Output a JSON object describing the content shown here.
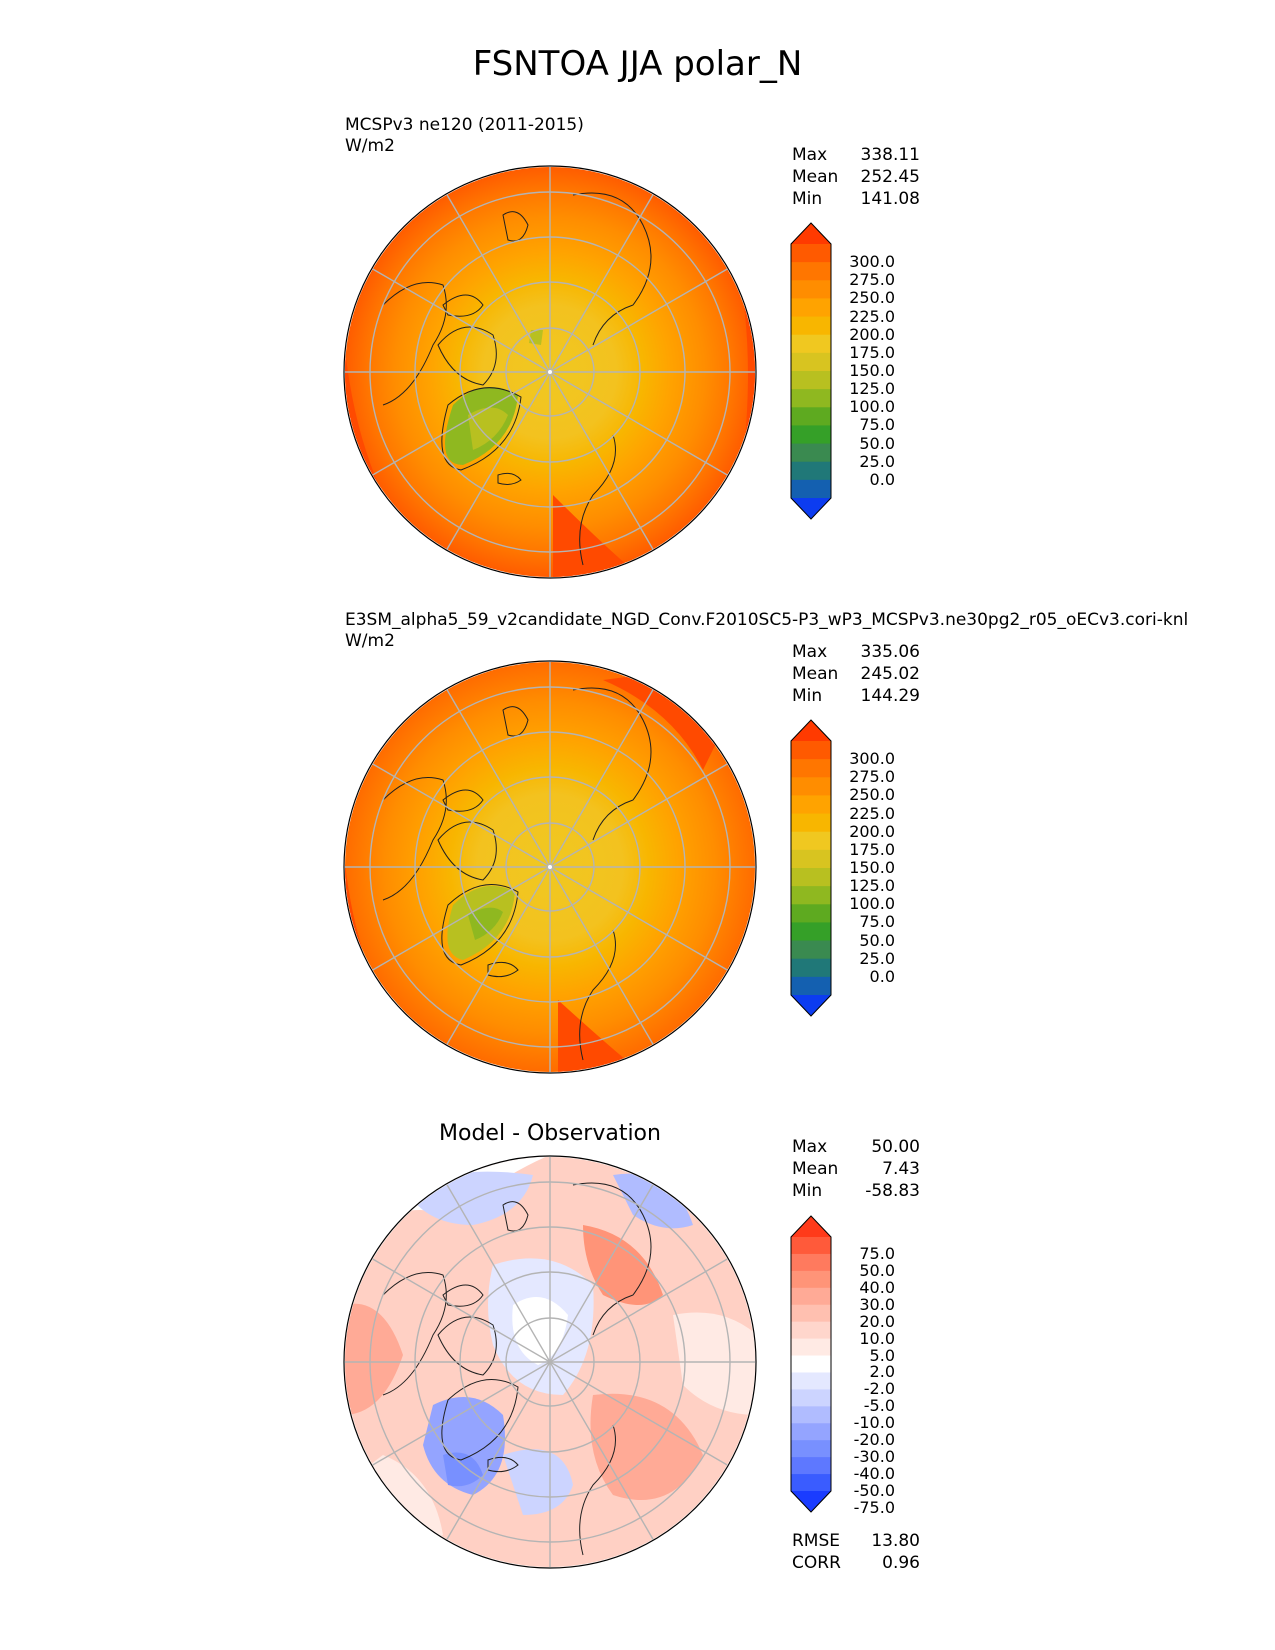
{
  "figure": {
    "title": "FSNTOA JJA polar_N"
  },
  "panels": [
    {
      "id": "test",
      "name": "MCSPv3 ne120 (2011-2015)",
      "units": "W/m2",
      "stats": {
        "max_label": "Max",
        "max": "338.11",
        "mean_label": "Mean",
        "mean": "252.45",
        "min_label": "Min",
        "min": "141.08"
      },
      "colorbar_levels": [
        "300.0",
        "275.0",
        "250.0",
        "225.0",
        "200.0",
        "175.0",
        "150.0",
        "125.0",
        "100.0",
        "75.0",
        "50.0",
        "25.0",
        "0.0"
      ],
      "colorbar_colors": [
        "#ff3a00",
        "#ff5a00",
        "#ff7600",
        "#ff8d00",
        "#ffa300",
        "#f8b600",
        "#f0c820",
        "#d8c420",
        "#b8c020",
        "#8fb820",
        "#5eaa20",
        "#35a028",
        "#3a8a50",
        "#207878",
        "#1460b0",
        "#0c3cf0"
      ]
    },
    {
      "id": "reference",
      "name": "E3SM_alpha5_59_v2candidate_NGD_Conv.F2010SC5-P3_wP3_MCSPv3.ne30pg2_r05_oECv3.cori-knl",
      "units": "W/m2",
      "stats": {
        "max_label": "Max",
        "max": "335.06",
        "mean_label": "Mean",
        "mean": "245.02",
        "min_label": "Min",
        "min": "144.29"
      },
      "colorbar_levels": [
        "300.0",
        "275.0",
        "250.0",
        "225.0",
        "200.0",
        "175.0",
        "150.0",
        "125.0",
        "100.0",
        "75.0",
        "50.0",
        "25.0",
        "0.0"
      ],
      "colorbar_colors": [
        "#ff3a00",
        "#ff5a00",
        "#ff7600",
        "#ff8d00",
        "#ffa300",
        "#f8b600",
        "#f0c820",
        "#d8c420",
        "#b8c020",
        "#8fb820",
        "#5eaa20",
        "#35a028",
        "#3a8a50",
        "#207878",
        "#1460b0",
        "#0c3cf0"
      ]
    },
    {
      "id": "difference",
      "title": "Model - Observation",
      "stats": {
        "max_label": "Max",
        "max": "50.00",
        "mean_label": "Mean",
        "mean": "7.43",
        "min_label": "Min",
        "min": "-58.83"
      },
      "colorbar_levels": [
        "75.0",
        "50.0",
        "40.0",
        "30.0",
        "20.0",
        "10.0",
        "5.0",
        "2.0",
        "-2.0",
        "-5.0",
        "-10.0",
        "-20.0",
        "-30.0",
        "-40.0",
        "-50.0",
        "-75.0"
      ],
      "colorbar_colors": [
        "#ff3a1a",
        "#ff5a3a",
        "#ff7a5e",
        "#ff9478",
        "#ffaa96",
        "#ffc0b0",
        "#ffd6cc",
        "#ffeae4",
        "#ffffff",
        "#e4e8ff",
        "#ccd4ff",
        "#b0bcff",
        "#94a4ff",
        "#7890ff",
        "#5e78ff",
        "#3a5cff",
        "#1a3cff"
      ],
      "rmse_label": "RMSE",
      "rmse": "13.80",
      "corr_label": "CORR",
      "corr": "0.96"
    }
  ]
}
